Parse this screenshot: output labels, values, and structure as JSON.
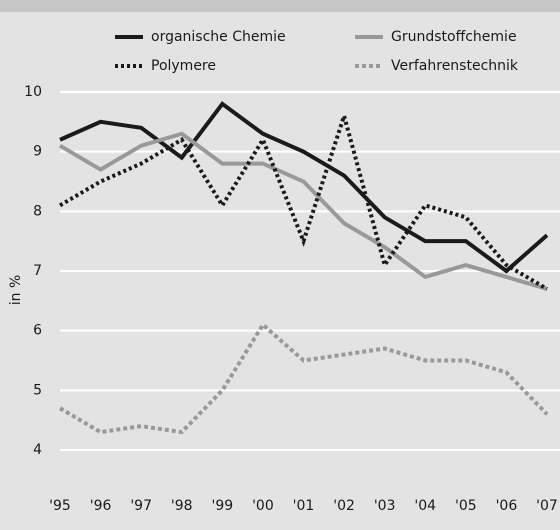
{
  "chart_data": {
    "type": "line",
    "ylabel": "in %",
    "categories": [
      "'95",
      "'96",
      "'97",
      "'98",
      "'99",
      "'00",
      "'01",
      "'02",
      "'03",
      "'04",
      "'05",
      "'06",
      "'07"
    ],
    "series": [
      {
        "name": "organische Chemie",
        "color": "#1a1a1a",
        "style": "solid",
        "values": [
          9.2,
          9.5,
          9.4,
          8.9,
          9.8,
          9.3,
          9.0,
          8.6,
          7.9,
          7.5,
          7.5,
          7.0,
          7.6
        ]
      },
      {
        "name": "Grundstoffchemie",
        "color": "#999999",
        "style": "solid",
        "values": [
          9.1,
          8.7,
          9.1,
          9.3,
          8.8,
          8.8,
          8.5,
          7.8,
          7.4,
          6.9,
          7.1,
          6.9,
          6.7
        ]
      },
      {
        "name": "Polymere",
        "color": "#1a1a1a",
        "style": "dotted",
        "values": [
          8.1,
          8.5,
          8.8,
          9.2,
          8.1,
          9.2,
          7.5,
          9.6,
          7.1,
          8.1,
          7.9,
          7.1,
          6.7
        ]
      },
      {
        "name": "Verfahrenstechnik",
        "color": "#999999",
        "style": "dashed",
        "values": [
          4.7,
          4.3,
          4.4,
          4.3,
          5.0,
          6.1,
          5.5,
          5.6,
          5.7,
          5.5,
          5.5,
          5.3,
          4.6
        ]
      }
    ],
    "ylim": [
      4,
      10
    ],
    "yticks": [
      4,
      5,
      6,
      7,
      8,
      9,
      10
    ],
    "grid": true
  }
}
